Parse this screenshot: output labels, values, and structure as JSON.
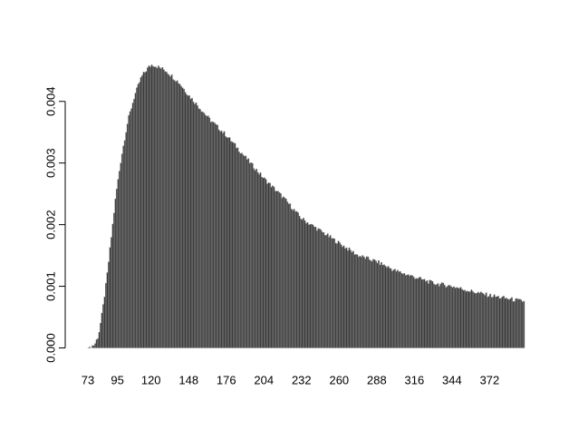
{
  "chart_data": {
    "type": "bar",
    "title": "",
    "xlabel": "",
    "ylabel": "",
    "x_range": [
      73,
      398
    ],
    "ylim": [
      0,
      0.0046
    ],
    "y_ticks": [
      0,
      0.001,
      0.002,
      0.003,
      0.004
    ],
    "y_tick_labels": [
      "0.000",
      "0.001",
      "0.002",
      "0.003",
      "0.004"
    ],
    "x_tick_labels": [
      {
        "value": 73,
        "label": "73"
      },
      {
        "value": 95,
        "label": "95"
      },
      {
        "value": 120,
        "label": "120"
      },
      {
        "value": 148,
        "label": "148"
      },
      {
        "value": 176,
        "label": "176"
      },
      {
        "value": 204,
        "label": "204"
      },
      {
        "value": 232,
        "label": "232"
      },
      {
        "value": 260,
        "label": "260"
      },
      {
        "value": 288,
        "label": "288"
      },
      {
        "value": 316,
        "label": "316"
      },
      {
        "value": 344,
        "label": "344"
      },
      {
        "value": 372,
        "label": "372"
      }
    ],
    "bin_width": 1,
    "density_curve": [
      {
        "x": 73,
        "y": 0.0
      },
      {
        "x": 78,
        "y": 5e-05
      },
      {
        "x": 81,
        "y": 0.0002
      },
      {
        "x": 84,
        "y": 0.0006
      },
      {
        "x": 87,
        "y": 0.0011
      },
      {
        "x": 90,
        "y": 0.0017
      },
      {
        "x": 94,
        "y": 0.0025
      },
      {
        "x": 98,
        "y": 0.0031
      },
      {
        "x": 103,
        "y": 0.0037
      },
      {
        "x": 108,
        "y": 0.0041
      },
      {
        "x": 113,
        "y": 0.0044
      },
      {
        "x": 118,
        "y": 0.00455
      },
      {
        "x": 121,
        "y": 0.0046
      },
      {
        "x": 126,
        "y": 0.00455
      },
      {
        "x": 131,
        "y": 0.0045
      },
      {
        "x": 136,
        "y": 0.0044
      },
      {
        "x": 141,
        "y": 0.0043
      },
      {
        "x": 148,
        "y": 0.0041
      },
      {
        "x": 156,
        "y": 0.0039
      },
      {
        "x": 164,
        "y": 0.0037
      },
      {
        "x": 176,
        "y": 0.00345
      },
      {
        "x": 190,
        "y": 0.0031
      },
      {
        "x": 204,
        "y": 0.00275
      },
      {
        "x": 218,
        "y": 0.00245
      },
      {
        "x": 232,
        "y": 0.0021
      },
      {
        "x": 246,
        "y": 0.0019
      },
      {
        "x": 260,
        "y": 0.0017
      },
      {
        "x": 274,
        "y": 0.0015
      },
      {
        "x": 288,
        "y": 0.0014
      },
      {
        "x": 302,
        "y": 0.00125
      },
      {
        "x": 316,
        "y": 0.00115
      },
      {
        "x": 330,
        "y": 0.00105
      },
      {
        "x": 344,
        "y": 0.001
      },
      {
        "x": 358,
        "y": 0.00092
      },
      {
        "x": 372,
        "y": 0.00085
      },
      {
        "x": 385,
        "y": 0.0008
      },
      {
        "x": 398,
        "y": 0.00075
      }
    ],
    "bar_color": "#3a3a3a",
    "bar_edge_color": "#8c8c8c",
    "grid": false,
    "legend": "none"
  }
}
